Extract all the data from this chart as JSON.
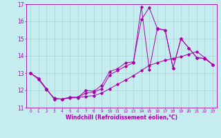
{
  "xlabel": "Windchill (Refroidissement éolien,°C)",
  "bg_color": "#c5ecee",
  "line_color": "#aa00aa",
  "grid_color": "#aacccc",
  "xlim": [
    -0.5,
    23.5
  ],
  "ylim": [
    11,
    17
  ],
  "xticks": [
    0,
    1,
    2,
    3,
    4,
    5,
    6,
    7,
    8,
    9,
    10,
    11,
    12,
    13,
    14,
    15,
    16,
    17,
    18,
    19,
    20,
    21,
    22,
    23
  ],
  "yticks": [
    11,
    12,
    13,
    14,
    15,
    16,
    17
  ],
  "hours": [
    0,
    1,
    2,
    3,
    4,
    5,
    6,
    7,
    8,
    9,
    10,
    11,
    12,
    13,
    14,
    15,
    16,
    17,
    18,
    19,
    20,
    21,
    22,
    23
  ],
  "temp": [
    13.0,
    12.7,
    12.1,
    11.5,
    11.5,
    11.6,
    11.6,
    12.0,
    11.95,
    12.3,
    13.1,
    13.25,
    13.6,
    13.65,
    16.1,
    16.8,
    15.6,
    15.5,
    13.3,
    15.0,
    14.45,
    13.9,
    13.85,
    13.5
  ],
  "wc": [
    13.0,
    12.7,
    12.1,
    11.5,
    11.5,
    11.6,
    11.6,
    11.85,
    11.9,
    12.1,
    12.9,
    13.15,
    13.4,
    13.6,
    16.85,
    13.2,
    15.55,
    15.5,
    13.3,
    15.0,
    14.45,
    13.9,
    13.85,
    13.5
  ],
  "trend": [
    13.0,
    12.65,
    12.05,
    11.55,
    11.5,
    11.55,
    11.58,
    11.65,
    11.7,
    11.85,
    12.1,
    12.35,
    12.6,
    12.85,
    13.15,
    13.45,
    13.6,
    13.75,
    13.85,
    13.95,
    14.1,
    14.25,
    13.9,
    13.5
  ]
}
